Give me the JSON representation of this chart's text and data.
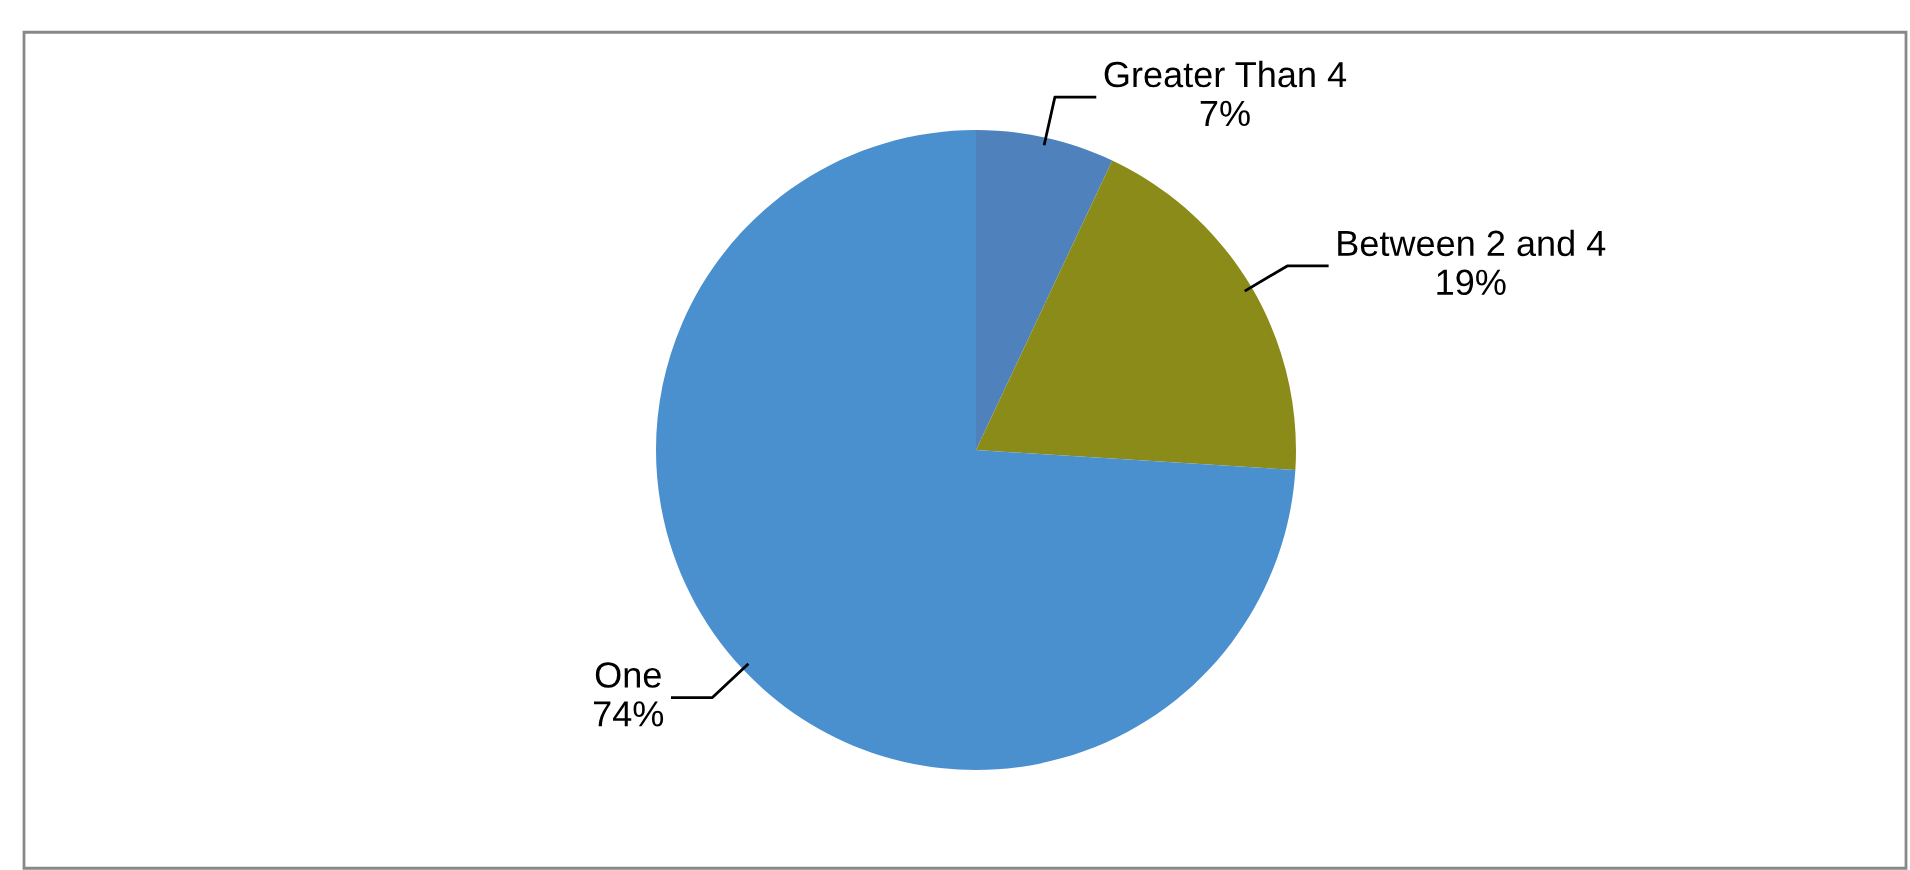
{
  "chart_data": {
    "type": "pie",
    "categories": [
      "Greater Than 4",
      "Between 2 and 4",
      "One"
    ],
    "values": [
      7,
      19,
      74
    ],
    "colors": [
      "#4f81bd",
      "#8b8b1a",
      "#4a90cf"
    ],
    "value_labels": [
      "7%",
      "19%",
      "74%"
    ]
  }
}
